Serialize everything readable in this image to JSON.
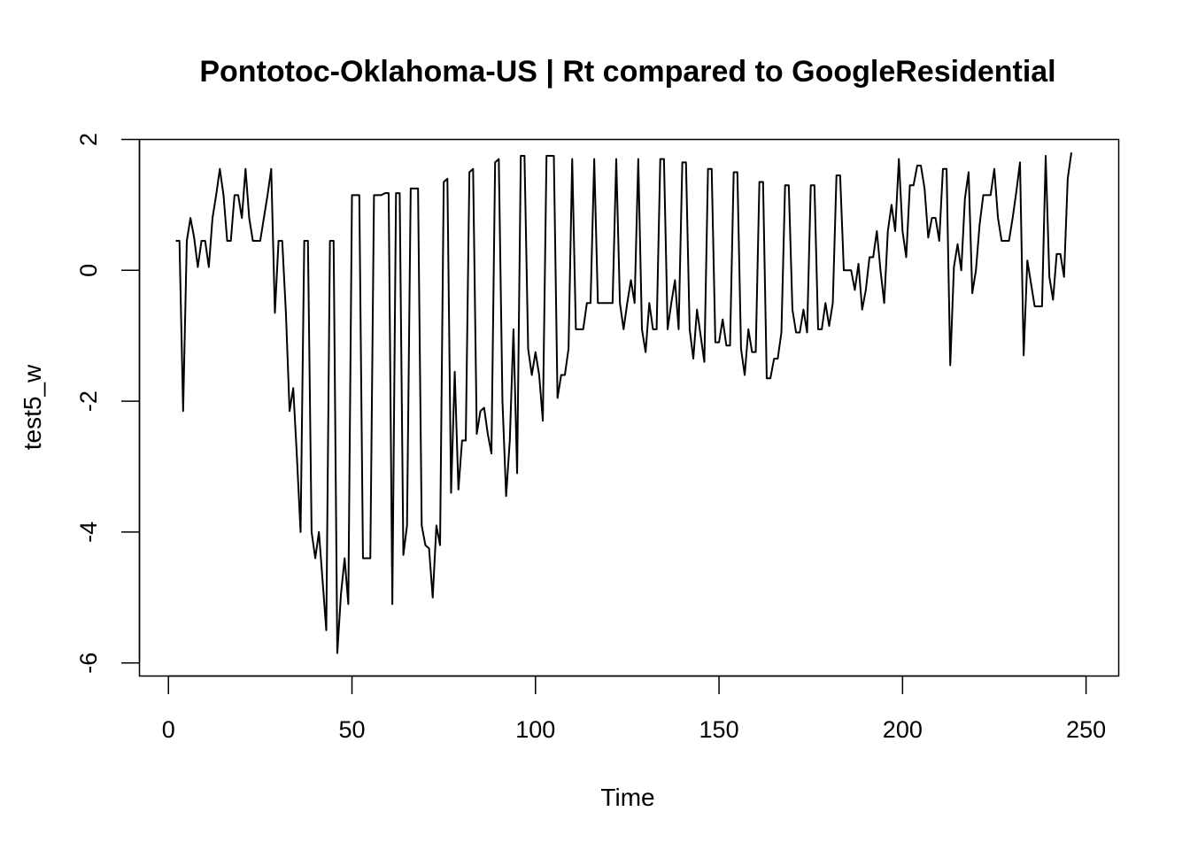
{
  "chart_data": {
    "type": "line",
    "title": "Pontotoc-Oklahoma-US | Rt compared to GoogleResidential",
    "xlabel": "Time",
    "ylabel": "test5_w",
    "xlim": [
      -7.9,
      258.9
    ],
    "ylim": [
      -6.2,
      2.0
    ],
    "x_ticks": [
      0,
      50,
      100,
      150,
      200,
      250
    ],
    "y_ticks": [
      -6,
      -4,
      -2,
      0,
      2
    ],
    "x_tick_labels": [
      "0",
      "50",
      "100",
      "150",
      "200",
      "250"
    ],
    "y_tick_labels": [
      "-6",
      "-4",
      "-2",
      "0",
      "2"
    ],
    "series": [
      {
        "name": "test5_w",
        "x_start": 2,
        "values": [
          0.45,
          0.45,
          -2.15,
          0.45,
          0.8,
          0.5,
          0.05,
          0.45,
          0.45,
          0.05,
          0.8,
          1.15,
          1.55,
          1.15,
          0.45,
          0.45,
          1.15,
          1.15,
          0.8,
          1.55,
          0.8,
          0.45,
          0.45,
          0.45,
          0.8,
          1.15,
          1.55,
          -0.65,
          0.45,
          0.45,
          -0.65,
          -2.15,
          -1.8,
          -2.85,
          -4.0,
          0.45,
          0.45,
          -4.0,
          -4.4,
          -4.0,
          -4.75,
          -5.5,
          0.45,
          0.45,
          -5.85,
          -4.95,
          -4.4,
          -5.1,
          1.15,
          1.15,
          1.15,
          -4.4,
          -4.4,
          -4.4,
          1.15,
          1.15,
          1.15,
          1.18,
          1.18,
          -5.1,
          1.18,
          1.18,
          -4.35,
          -3.9,
          1.25,
          1.25,
          1.25,
          -3.9,
          -4.2,
          -4.25,
          -5.0,
          -3.9,
          -4.2,
          1.35,
          1.4,
          -3.4,
          -1.55,
          -3.35,
          -2.6,
          -2.6,
          1.5,
          1.55,
          -2.5,
          -2.15,
          -2.1,
          -2.5,
          -2.8,
          1.65,
          1.7,
          -2.0,
          -3.45,
          -2.6,
          -0.9,
          -3.1,
          1.75,
          1.75,
          -1.2,
          -1.6,
          -1.25,
          -1.6,
          -2.3,
          1.75,
          1.75,
          1.75,
          -1.95,
          -1.6,
          -1.6,
          -1.2,
          1.7,
          -0.9,
          -0.9,
          -0.9,
          -0.5,
          -0.5,
          1.7,
          -0.5,
          -0.5,
          -0.5,
          -0.5,
          -0.5,
          1.7,
          -0.5,
          -0.9,
          -0.5,
          -0.15,
          -0.5,
          1.7,
          -0.9,
          -1.25,
          -0.5,
          -0.9,
          -0.9,
          1.7,
          1.7,
          -0.9,
          -0.5,
          -0.15,
          -0.9,
          1.65,
          1.65,
          -0.9,
          -1.35,
          -0.6,
          -1.0,
          -1.4,
          1.55,
          1.55,
          -1.1,
          -1.1,
          -0.75,
          -1.15,
          -1.15,
          1.5,
          1.5,
          -1.2,
          -1.6,
          -0.9,
          -1.25,
          -1.25,
          1.35,
          1.35,
          -1.65,
          -1.65,
          -1.35,
          -1.35,
          -0.95,
          1.3,
          1.3,
          -0.6,
          -0.95,
          -0.95,
          -0.6,
          -0.95,
          1.3,
          1.3,
          -0.9,
          -0.9,
          -0.5,
          -0.85,
          -0.5,
          1.45,
          1.45,
          0.0,
          0.0,
          0.0,
          -0.3,
          0.1,
          -0.6,
          -0.3,
          0.2,
          0.2,
          0.6,
          0.0,
          -0.5,
          0.6,
          1.0,
          0.6,
          1.7,
          0.6,
          0.2,
          1.3,
          1.3,
          1.6,
          1.6,
          1.25,
          0.5,
          0.8,
          0.8,
          0.45,
          1.55,
          1.55,
          -1.45,
          0.05,
          0.4,
          0.0,
          1.1,
          1.5,
          -0.35,
          0.0,
          0.7,
          1.15,
          1.15,
          1.15,
          1.55,
          0.8,
          0.45,
          0.45,
          0.45,
          0.8,
          1.2,
          1.65,
          -1.3,
          0.15,
          -0.2,
          -0.55,
          -0.55,
          -0.55,
          1.75,
          -0.1,
          -0.45,
          0.25,
          0.25,
          -0.1,
          1.4,
          1.8
        ]
      }
    ]
  }
}
